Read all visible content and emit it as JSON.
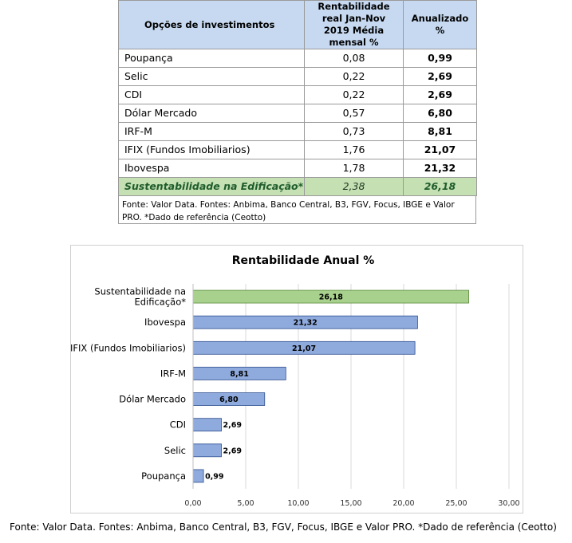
{
  "table": {
    "headers": [
      "Opções de investimentos",
      "Rentabilidade real Jan-Nov 2019 Média mensal %",
      "Anualizado %"
    ],
    "rows": [
      {
        "name": "Poupança",
        "monthly": "0,08",
        "annual": "0,99"
      },
      {
        "name": "Selic",
        "monthly": "0,22",
        "annual": "2,69"
      },
      {
        "name": "CDI",
        "monthly": "0,22",
        "annual": "2,69"
      },
      {
        "name": "Dólar Mercado",
        "monthly": "0,57",
        "annual": "6,80"
      },
      {
        "name": "IRF-M",
        "monthly": "0,73",
        "annual": "8,81"
      },
      {
        "name": "IFIX (Fundos Imobiliarios)",
        "monthly": "1,76",
        "annual": "21,07"
      },
      {
        "name": "Ibovespa",
        "monthly": "1,78",
        "annual": "21,32"
      },
      {
        "name": "Sustentabilidade na Edificação*",
        "monthly": "2,38",
        "annual": "26,18",
        "highlight": true
      }
    ],
    "note": "Fonte: Valor Data. Fontes: Anbima, Banco Central, B3, FGV, Focus, IBGE e Valor PRO. *Dado de referência (Ceotto)"
  },
  "chart_data": {
    "type": "bar",
    "orientation": "horizontal",
    "title": "Rentabilidade Anual %",
    "categories": [
      [
        "Sustentabilidade na",
        "Edificação*"
      ],
      [
        "Ibovespa"
      ],
      [
        "IFIX (Fundos Imobiliarios)"
      ],
      [
        "IRF-M"
      ],
      [
        "Dólar Mercado"
      ],
      [
        "CDI"
      ],
      [
        "Selic"
      ],
      [
        "Poupança"
      ]
    ],
    "values": [
      26.18,
      21.32,
      21.07,
      8.81,
      6.8,
      2.69,
      2.69,
      0.99
    ],
    "value_labels": [
      "26,18",
      "21,32",
      "21,07",
      "8,81",
      "6,80",
      "2,69",
      "2,69",
      "0,99"
    ],
    "xlim": [
      0,
      30
    ],
    "xticks": [
      0,
      5,
      10,
      15,
      20,
      25,
      30
    ],
    "xtick_labels": [
      "0,00",
      "5,00",
      "10,00",
      "15,00",
      "20,00",
      "25,00",
      "30,00"
    ],
    "grid": true,
    "legend": "none",
    "colors": {
      "highlight": "#a9d18e",
      "default": "#8faadc",
      "highlight_edge": "#5a8a3a",
      "default_edge": "#2f4f8f"
    }
  },
  "footer": "Fonte: Valor Data. Fontes: Anbima, Banco Central, B3, FGV, Focus, IBGE e Valor PRO. *Dado de referência (Ceotto)"
}
